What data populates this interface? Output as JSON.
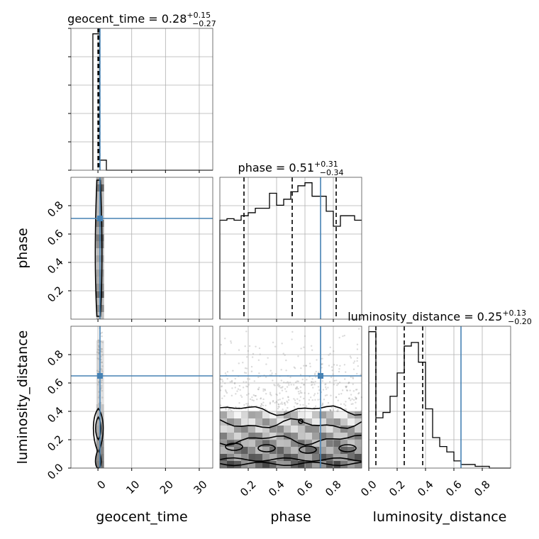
{
  "chart_data": {
    "type": "corner",
    "parameters": [
      "geocent_time",
      "phase",
      "luminosity_distance"
    ],
    "titles": [
      {
        "param": "geocent_time",
        "median": "0.28",
        "plus": "+0.15",
        "minus": "−0.27"
      },
      {
        "param": "phase",
        "median": "0.51",
        "plus": "+0.31",
        "minus": "−0.34"
      },
      {
        "param": "luminosity_distance",
        "median": "0.25",
        "plus": "+0.13",
        "minus": "−0.20"
      }
    ],
    "axes": {
      "geocent_time": {
        "range": [
          -8,
          34
        ],
        "ticks": [
          0,
          10,
          20,
          30
        ],
        "tick_labels": [
          "0",
          "10",
          "20",
          "30"
        ]
      },
      "phase": {
        "range": [
          0.0,
          1.0
        ],
        "ticks": [
          0.2,
          0.4,
          0.6,
          0.8
        ],
        "tick_labels": [
          "0.2",
          "0.4",
          "0.6",
          "0.8"
        ]
      },
      "luminosity_distance": {
        "range": [
          0.0,
          1.0
        ],
        "ticks": [
          0.0,
          0.2,
          0.4,
          0.6,
          0.8
        ],
        "tick_labels": [
          "0.0",
          "0.2",
          "0.4",
          "0.6",
          "0.8"
        ]
      }
    },
    "truths": {
      "geocent_time": 0.6,
      "phase": 0.71,
      "luminosity_distance": 0.65
    },
    "quantiles": {
      "geocent_time": [
        0.01,
        0.28,
        0.43
      ],
      "phase": [
        0.17,
        0.51,
        0.82
      ],
      "luminosity_distance": [
        0.05,
        0.25,
        0.38
      ]
    },
    "histograms": {
      "geocent_time": {
        "edges": [
          -1.5,
          0.5,
          2.5,
          4.5,
          6.5,
          8.5,
          10.5,
          12.5,
          14.5,
          16.5,
          18.5,
          20.5,
          22.5,
          24.5,
          26.5,
          28.5,
          30.5,
          32.5,
          34
        ],
        "counts": [
          95,
          7,
          0,
          0,
          0,
          0,
          0,
          0,
          0,
          0,
          0,
          0,
          0,
          0,
          0,
          0,
          0,
          0
        ]
      },
      "phase": {
        "edges": [
          0.0,
          0.05,
          0.1,
          0.15,
          0.2,
          0.25,
          0.3,
          0.35,
          0.4,
          0.45,
          0.5,
          0.55,
          0.6,
          0.65,
          0.7,
          0.75,
          0.8,
          0.85,
          0.9,
          0.95,
          1.0
        ],
        "counts": [
          66,
          67,
          66,
          69,
          71,
          74,
          74,
          84,
          76,
          80,
          85,
          89,
          91,
          82,
          82,
          72,
          62,
          69,
          69,
          66
        ]
      },
      "luminosity_distance": {
        "edges": [
          0.0,
          0.05,
          0.1,
          0.15,
          0.2,
          0.25,
          0.3,
          0.35,
          0.4,
          0.45,
          0.5,
          0.55,
          0.6,
          0.65,
          0.7,
          0.75,
          0.8,
          0.85,
          0.9,
          0.95,
          1.0
        ],
        "counts": [
          76,
          28,
          31,
          40,
          53,
          68,
          70,
          59,
          33,
          17,
          12,
          9,
          4,
          2,
          2,
          1,
          1,
          0,
          0,
          0
        ]
      }
    },
    "grid": true
  }
}
